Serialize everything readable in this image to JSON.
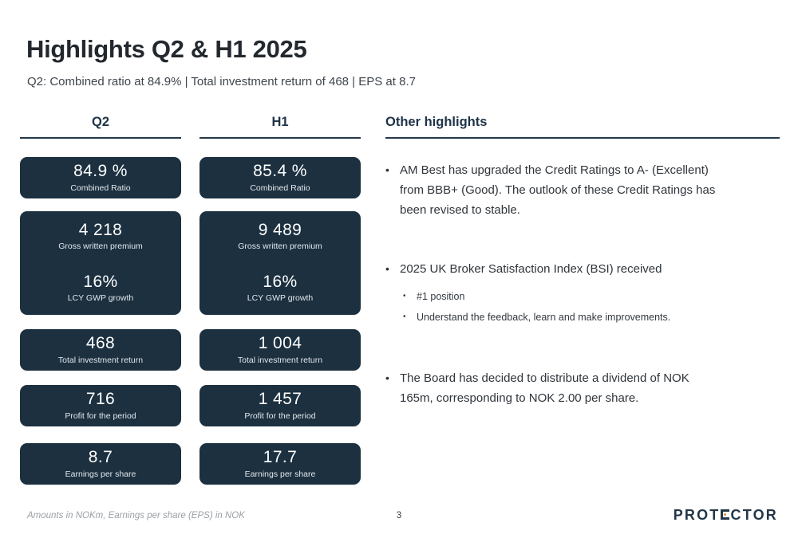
{
  "slide": {
    "title": "Highlights Q2 & H1 2025",
    "subtitle": "Q2: Combined ratio at 84.9% | Total investment return of 468 | EPS at 8.7",
    "footer_note": "Amounts in NOKm, Earnings per share (EPS) in NOK",
    "page_number": "3"
  },
  "colors": {
    "box_background": "#1c3040",
    "header_navy": "#203449",
    "underline_navy": "#24384a",
    "logo_navy": "#233648",
    "logo_orange": "#f0861f"
  },
  "columns": [
    {
      "header": "Q2",
      "boxes": [
        {
          "metrics": [
            {
              "value": "84.9 %",
              "label": "Combined Ratio"
            }
          ]
        },
        {
          "metrics": [
            {
              "value": "4 218",
              "label": "Gross written premium"
            },
            {
              "value": "16%",
              "label": "LCY GWP growth"
            }
          ]
        },
        {
          "metrics": [
            {
              "value": "468",
              "label": "Total investment return"
            }
          ]
        },
        {
          "metrics": [
            {
              "value": "716",
              "label": "Profit for the period"
            }
          ]
        },
        {
          "metrics": [
            {
              "value": "8.7",
              "label": "Earnings per share"
            }
          ]
        }
      ]
    },
    {
      "header": "H1",
      "boxes": [
        {
          "metrics": [
            {
              "value": "85.4 %",
              "label": "Combined Ratio"
            }
          ]
        },
        {
          "metrics": [
            {
              "value": "9 489",
              "label": "Gross written premium"
            },
            {
              "value": "16%",
              "label": "LCY GWP growth"
            }
          ]
        },
        {
          "metrics": [
            {
              "value": "1 004",
              "label": "Total investment return"
            }
          ]
        },
        {
          "metrics": [
            {
              "value": "1 457",
              "label": "Profit for the period"
            }
          ]
        },
        {
          "metrics": [
            {
              "value": "17.7",
              "label": "Earnings per share"
            }
          ]
        }
      ]
    }
  ],
  "highlights": {
    "header": "Other highlights",
    "bullets": [
      {
        "text": "AM Best has upgraded the Credit Ratings to A- (Excellent)\nfrom BBB+ (Good). The outlook of these Credit Ratings has\nbeen revised to stable.",
        "sub": []
      },
      {
        "text": "2025 UK Broker Satisfaction Index (BSI) received",
        "sub": [
          "#1 position",
          "Understand the feedback, learn and make improvements."
        ]
      },
      {
        "text": "The Board has decided to distribute a dividend of NOK\n165m, corresponding to NOK 2.00 per share.",
        "sub": []
      }
    ]
  },
  "logo": {
    "pre": "PROT",
    "post": "CTOR",
    "full_name": "PROTECTOR"
  }
}
